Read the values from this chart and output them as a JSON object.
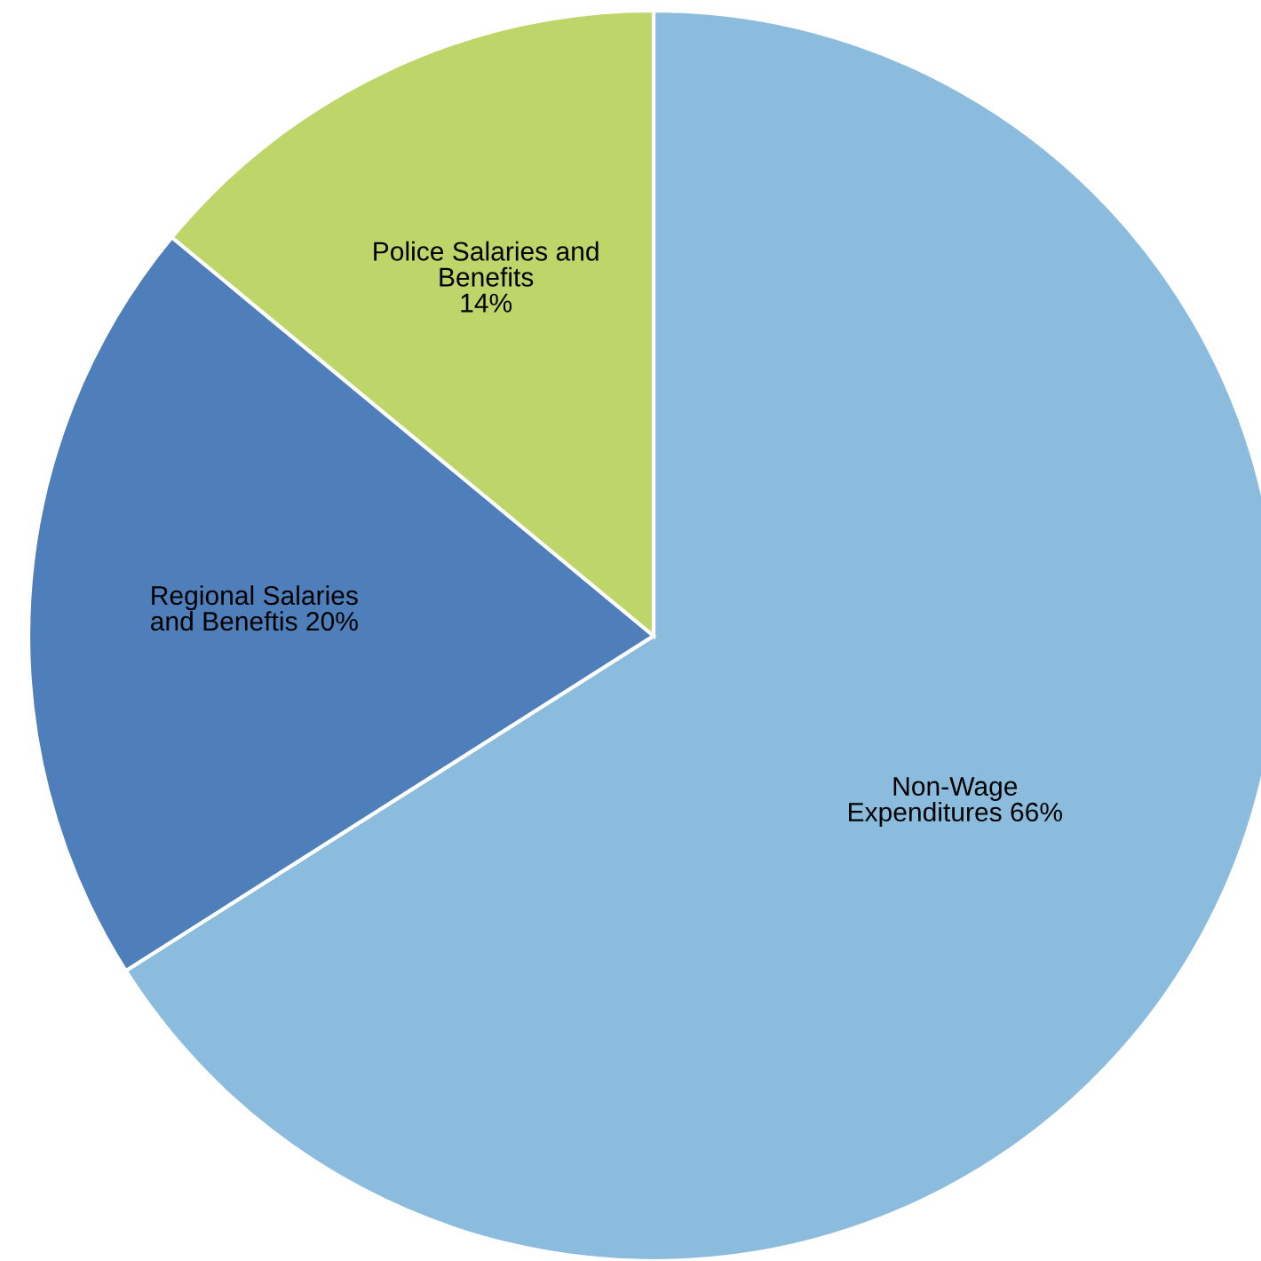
{
  "chart_data": {
    "type": "pie",
    "categories": [
      "Non-Wage Expenditures",
      "Regional Salaries and Beneftis",
      "Police Salaries and Benefits"
    ],
    "values": [
      66,
      20,
      14
    ],
    "value_labels": [
      "66%",
      "20%",
      "14%"
    ],
    "colors": [
      "#8bbcdd",
      "#4f7fbb",
      "#bed56a"
    ],
    "legend": false
  }
}
